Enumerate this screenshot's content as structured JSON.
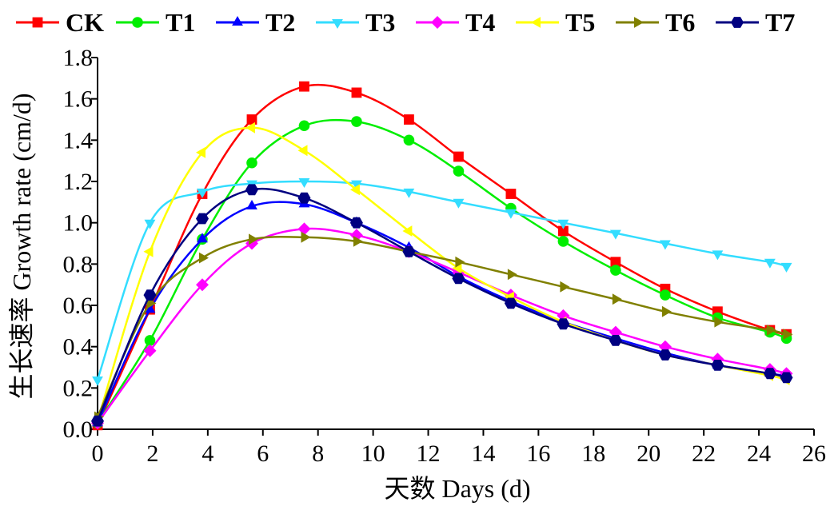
{
  "chart_data": {
    "type": "line",
    "title": "",
    "xlabel": "天数 Days (d)",
    "ylabel": "生长速率 Growth rate (cm/d)",
    "xlim": [
      0,
      26
    ],
    "ylim": [
      0,
      1.8
    ],
    "xticks": [
      0,
      2,
      4,
      6,
      8,
      10,
      12,
      14,
      16,
      18,
      20,
      22,
      24,
      26
    ],
    "yticks": [
      0.0,
      0.2,
      0.4,
      0.6,
      0.8,
      1.0,
      1.2,
      1.4,
      1.6,
      1.8
    ],
    "ytick_labels": [
      "0.0",
      "0.2",
      "0.4",
      "0.6",
      "0.8",
      "1.0",
      "1.2",
      "1.4",
      "1.6",
      "1.8"
    ],
    "grid": false,
    "legend_position": "top",
    "x": [
      0,
      1.9,
      3.8,
      5.6,
      7.5,
      9.4,
      11.3,
      13.1,
      15.0,
      16.9,
      18.8,
      20.6,
      22.5,
      24.4,
      25.0
    ],
    "series": [
      {
        "name": "CK",
        "color": "#ff0000",
        "marker": "square",
        "values": [
          0.02,
          0.58,
          1.14,
          1.5,
          1.66,
          1.63,
          1.5,
          1.32,
          1.14,
          0.96,
          0.81,
          0.68,
          0.57,
          0.48,
          0.46
        ]
      },
      {
        "name": "T1",
        "color": "#00ee00",
        "marker": "circle",
        "values": [
          0.03,
          0.43,
          0.92,
          1.29,
          1.47,
          1.49,
          1.4,
          1.25,
          1.07,
          0.91,
          0.77,
          0.65,
          0.54,
          0.47,
          0.44
        ]
      },
      {
        "name": "T2",
        "color": "#0000ff",
        "marker": "triangle-up",
        "values": [
          0.03,
          0.58,
          0.92,
          1.08,
          1.09,
          1.0,
          0.88,
          0.74,
          0.62,
          0.52,
          0.44,
          0.37,
          0.31,
          0.27,
          0.26
        ]
      },
      {
        "name": "T3",
        "color": "#33ddff",
        "marker": "triangle-down",
        "values": [
          0.24,
          1.0,
          1.15,
          1.19,
          1.2,
          1.19,
          1.15,
          1.1,
          1.05,
          1.0,
          0.95,
          0.9,
          0.85,
          0.81,
          0.79
        ]
      },
      {
        "name": "T4",
        "color": "#ff00ff",
        "marker": "diamond",
        "values": [
          0.03,
          0.38,
          0.7,
          0.9,
          0.97,
          0.94,
          0.86,
          0.76,
          0.65,
          0.55,
          0.47,
          0.4,
          0.34,
          0.29,
          0.27
        ]
      },
      {
        "name": "T5",
        "color": "#ffff00",
        "marker": "triangle-left",
        "values": [
          0.04,
          0.86,
          1.34,
          1.46,
          1.35,
          1.16,
          0.96,
          0.78,
          0.64,
          0.52,
          0.43,
          0.36,
          0.31,
          0.26,
          0.24
        ]
      },
      {
        "name": "T6",
        "color": "#808000",
        "marker": "triangle-right",
        "values": [
          0.06,
          0.61,
          0.83,
          0.92,
          0.93,
          0.91,
          0.86,
          0.81,
          0.75,
          0.69,
          0.63,
          0.57,
          0.52,
          0.48,
          0.46
        ]
      },
      {
        "name": "T7",
        "color": "#000080",
        "marker": "hexagon",
        "values": [
          0.04,
          0.65,
          1.02,
          1.16,
          1.12,
          1.0,
          0.86,
          0.73,
          0.61,
          0.51,
          0.43,
          0.36,
          0.31,
          0.27,
          0.25
        ]
      }
    ]
  }
}
